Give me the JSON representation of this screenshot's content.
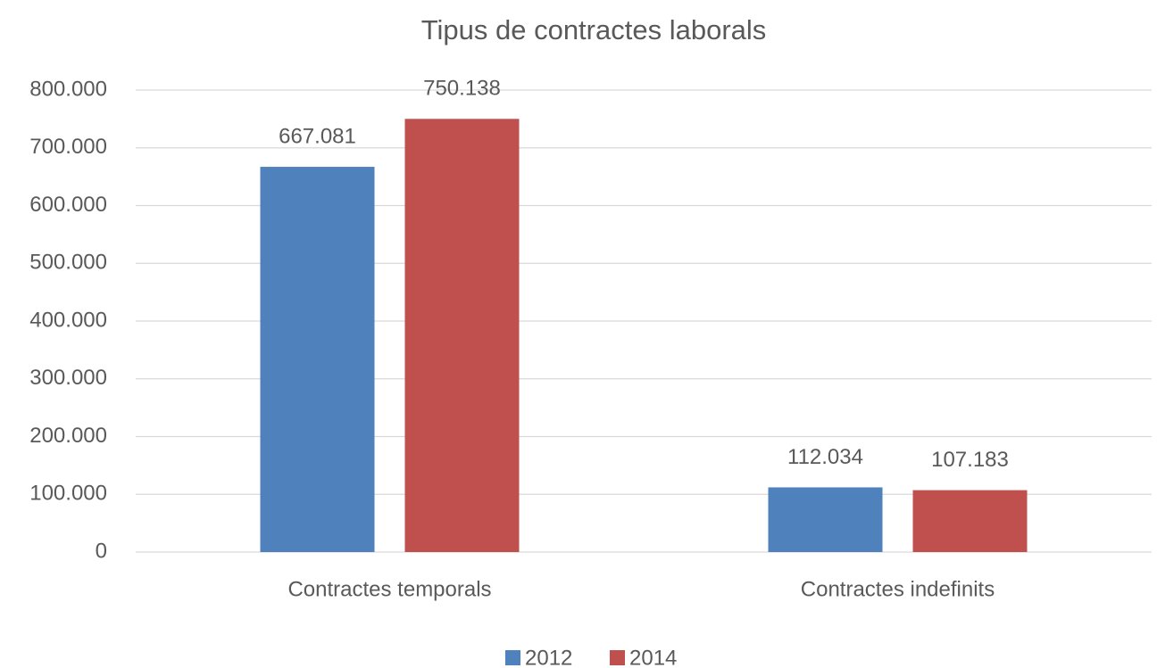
{
  "chart_data": {
    "type": "bar",
    "title": "Tipus de contractes laborals",
    "categories": [
      "Contractes temporals",
      "Contractes indefinits"
    ],
    "series": [
      {
        "name": "2012",
        "color": "#4f81bd",
        "values": [
          667081,
          112034
        ],
        "value_labels": [
          "667.081",
          "112.034"
        ]
      },
      {
        "name": "2014",
        "color": "#c0504d",
        "values": [
          750138,
          107183
        ],
        "value_labels": [
          "750.138",
          "107.183"
        ]
      }
    ],
    "ylim": [
      0,
      800000
    ],
    "yticks": [
      0,
      {
        "value": 100000,
        "label": "100.000"
      },
      {
        "value": 200000,
        "label": "200.000"
      },
      {
        "value": 300000,
        "label": "300.000"
      },
      {
        "value": 400000,
        "label": "400.000"
      },
      {
        "value": 500000,
        "label": "500.000"
      },
      {
        "value": 600000,
        "label": "600.000"
      },
      {
        "value": 700000,
        "label": "700.000"
      },
      {
        "value": 800000,
        "label": "800.000"
      }
    ],
    "grid": true,
    "legend": "bottom"
  }
}
